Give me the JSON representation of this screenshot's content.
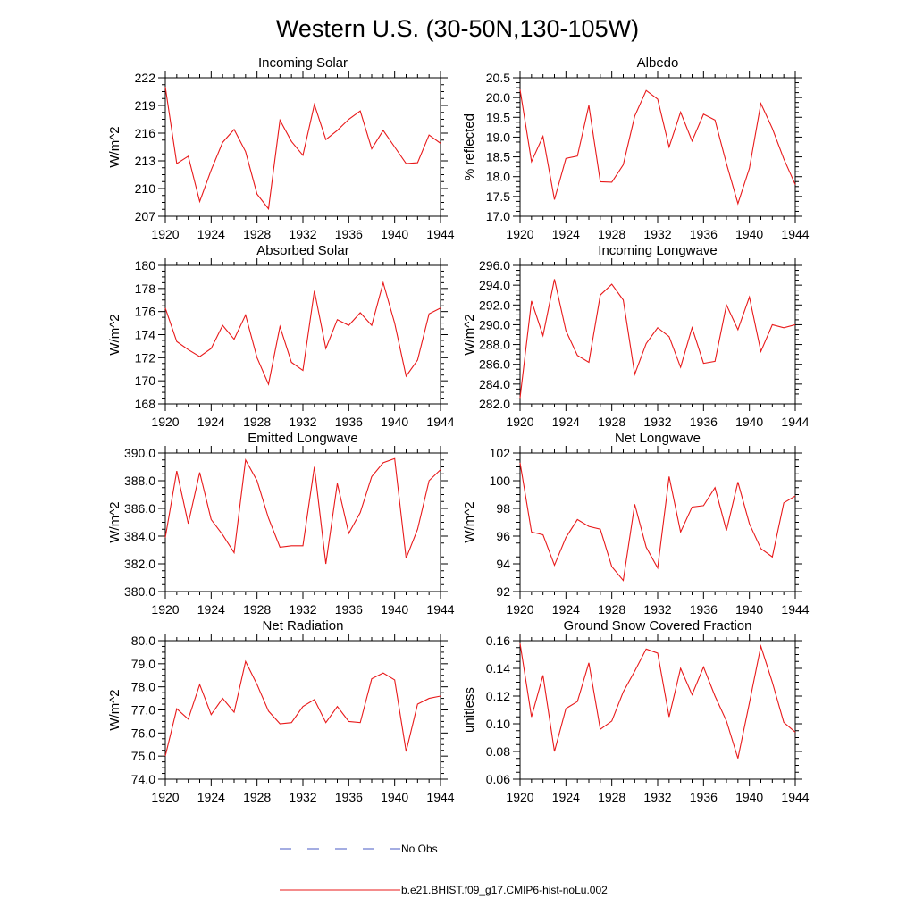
{
  "figure": {
    "title": "Western U.S. (30-50N,130-105W)"
  },
  "legend": {
    "items": [
      {
        "label": "No Obs",
        "style": "dashed",
        "color": "#4a5bc4"
      },
      {
        "label": "b.e21.BHIST.f09_g17.CMIP6-hist-noLu.002",
        "style": "solid",
        "color": "#e8191a"
      }
    ]
  },
  "chart_data": [
    {
      "type": "line",
      "title": "Incoming Solar",
      "ylabel": "W/m^2",
      "xlim": [
        1920,
        1944
      ],
      "xticks": [
        "1920",
        "1924",
        "1928",
        "1932",
        "1936",
        "1940",
        "1944"
      ],
      "ylim": [
        207,
        222
      ],
      "yticks": [
        "207",
        "210",
        "213",
        "216",
        "219",
        "222"
      ],
      "series": [
        {
          "color": "#e8191a",
          "x": [
            1920,
            1921,
            1922,
            1923,
            1924,
            1925,
            1926,
            1927,
            1928,
            1929,
            1930,
            1931,
            1932,
            1933,
            1934,
            1935,
            1936,
            1937,
            1938,
            1939,
            1940,
            1941,
            1942,
            1943,
            1944
          ],
          "values": [
            221.0,
            212.7,
            213.5,
            208.6,
            212.0,
            215.0,
            216.4,
            214.0,
            209.4,
            207.8,
            217.4,
            215.1,
            213.6,
            219.1,
            215.3,
            216.3,
            217.5,
            218.4,
            214.3,
            216.3,
            214.5,
            212.7,
            212.8,
            215.8,
            214.9
          ]
        }
      ]
    },
    {
      "type": "line",
      "title": "Albedo",
      "ylabel": "% reflected",
      "xlim": [
        1920,
        1944
      ],
      "xticks": [
        "1920",
        "1924",
        "1928",
        "1932",
        "1936",
        "1940",
        "1944"
      ],
      "ylim": [
        17.0,
        20.5
      ],
      "yticks": [
        "17.0",
        "17.5",
        "18.0",
        "18.5",
        "19.0",
        "19.5",
        "20.0",
        "20.5"
      ],
      "series": [
        {
          "color": "#e8191a",
          "x": [
            1920,
            1921,
            1922,
            1923,
            1924,
            1925,
            1926,
            1927,
            1928,
            1929,
            1930,
            1931,
            1932,
            1933,
            1934,
            1935,
            1936,
            1937,
            1938,
            1939,
            1940,
            1941,
            1942,
            1943,
            1944
          ],
          "values": [
            20.2,
            18.38,
            19.02,
            17.42,
            18.46,
            18.52,
            19.8,
            17.87,
            17.86,
            18.3,
            19.53,
            20.18,
            19.96,
            18.75,
            19.63,
            18.9,
            19.58,
            19.43,
            18.33,
            17.32,
            18.21,
            19.85,
            19.22,
            18.45,
            17.8
          ]
        }
      ]
    },
    {
      "type": "line",
      "title": "Absorbed Solar",
      "ylabel": "W/m^2",
      "xlim": [
        1920,
        1944
      ],
      "xticks": [
        "1920",
        "1924",
        "1928",
        "1932",
        "1936",
        "1940",
        "1944"
      ],
      "ylim": [
        168,
        180
      ],
      "yticks": [
        "168",
        "170",
        "172",
        "174",
        "176",
        "178",
        "180"
      ],
      "series": [
        {
          "color": "#e8191a",
          "x": [
            1920,
            1921,
            1922,
            1923,
            1924,
            1925,
            1926,
            1927,
            1928,
            1929,
            1930,
            1931,
            1932,
            1933,
            1934,
            1935,
            1936,
            1937,
            1938,
            1939,
            1940,
            1941,
            1942,
            1943,
            1944
          ],
          "values": [
            176.3,
            173.4,
            172.7,
            172.1,
            172.8,
            174.8,
            173.6,
            175.7,
            172.0,
            169.7,
            174.7,
            171.6,
            170.9,
            177.8,
            172.8,
            175.3,
            174.8,
            175.9,
            174.8,
            178.5,
            175.0,
            170.4,
            171.8,
            175.8,
            176.3
          ]
        }
      ]
    },
    {
      "type": "line",
      "title": "Incoming Longwave",
      "ylabel": "W/m^2",
      "xlim": [
        1920,
        1944
      ],
      "xticks": [
        "1920",
        "1924",
        "1928",
        "1932",
        "1936",
        "1940",
        "1944"
      ],
      "ylim": [
        282.0,
        296.0
      ],
      "yticks": [
        "282.0",
        "284.0",
        "286.0",
        "288.0",
        "290.0",
        "292.0",
        "294.0",
        "296.0"
      ],
      "series": [
        {
          "color": "#e8191a",
          "x": [
            1920,
            1921,
            1922,
            1923,
            1924,
            1925,
            1926,
            1927,
            1928,
            1929,
            1930,
            1931,
            1932,
            1933,
            1934,
            1935,
            1936,
            1937,
            1938,
            1939,
            1940,
            1941,
            1942,
            1943,
            1944
          ],
          "values": [
            282.6,
            292.4,
            288.9,
            294.6,
            289.4,
            286.9,
            286.2,
            293.0,
            294.1,
            292.5,
            285.0,
            288.1,
            289.7,
            288.8,
            285.7,
            289.7,
            286.1,
            286.3,
            292.0,
            289.5,
            292.8,
            287.3,
            290.0,
            289.7,
            290.0
          ]
        }
      ]
    },
    {
      "type": "line",
      "title": "Emitted Longwave",
      "ylabel": "W/m^2",
      "xlim": [
        1920,
        1944
      ],
      "xticks": [
        "1920",
        "1924",
        "1928",
        "1932",
        "1936",
        "1940",
        "1944"
      ],
      "ylim": [
        380.0,
        390.0
      ],
      "yticks": [
        "380.0",
        "382.0",
        "384.0",
        "386.0",
        "388.0",
        "390.0"
      ],
      "series": [
        {
          "color": "#e8191a",
          "x": [
            1920,
            1921,
            1922,
            1923,
            1924,
            1925,
            1926,
            1927,
            1928,
            1929,
            1930,
            1931,
            1932,
            1933,
            1934,
            1935,
            1936,
            1937,
            1938,
            1939,
            1940,
            1941,
            1942,
            1943,
            1944
          ],
          "values": [
            383.9,
            388.7,
            384.9,
            388.6,
            385.2,
            384.1,
            382.8,
            389.5,
            388.0,
            385.3,
            383.2,
            383.3,
            383.3,
            389.0,
            382.0,
            387.8,
            384.2,
            385.7,
            388.3,
            389.3,
            389.6,
            382.4,
            384.5,
            388.0,
            388.8
          ]
        }
      ]
    },
    {
      "type": "line",
      "title": "Net Longwave",
      "ylabel": "W/m^2",
      "xlim": [
        1920,
        1944
      ],
      "xticks": [
        "1920",
        "1924",
        "1928",
        "1932",
        "1936",
        "1940",
        "1944"
      ],
      "ylim": [
        92,
        102
      ],
      "yticks": [
        "92",
        "94",
        "96",
        "98",
        "100",
        "102"
      ],
      "series": [
        {
          "color": "#e8191a",
          "x": [
            1920,
            1921,
            1922,
            1923,
            1924,
            1925,
            1926,
            1927,
            1928,
            1929,
            1930,
            1931,
            1932,
            1933,
            1934,
            1935,
            1936,
            1937,
            1938,
            1939,
            1940,
            1941,
            1942,
            1943,
            1944
          ],
          "values": [
            101.3,
            96.3,
            96.1,
            93.9,
            95.9,
            97.2,
            96.7,
            96.5,
            93.8,
            92.8,
            98.3,
            95.2,
            93.7,
            100.3,
            96.3,
            98.1,
            98.2,
            99.5,
            96.4,
            99.9,
            96.9,
            95.1,
            94.5,
            98.4,
            98.9
          ]
        }
      ]
    },
    {
      "type": "line",
      "title": "Net Radiation",
      "ylabel": "W/m^2",
      "xlim": [
        1920,
        1944
      ],
      "xticks": [
        "1920",
        "1924",
        "1928",
        "1932",
        "1936",
        "1940",
        "1944"
      ],
      "ylim": [
        74.0,
        80.0
      ],
      "yticks": [
        "74.0",
        "75.0",
        "76.0",
        "77.0",
        "78.0",
        "79.0",
        "80.0"
      ],
      "series": [
        {
          "color": "#e8191a",
          "x": [
            1920,
            1921,
            1922,
            1923,
            1924,
            1925,
            1926,
            1927,
            1928,
            1929,
            1930,
            1931,
            1932,
            1933,
            1934,
            1935,
            1936,
            1937,
            1938,
            1939,
            1940,
            1941,
            1942,
            1943,
            1944
          ],
          "values": [
            75.0,
            77.05,
            76.6,
            78.1,
            76.8,
            77.5,
            76.9,
            79.1,
            78.1,
            76.95,
            76.4,
            76.45,
            77.15,
            77.45,
            76.45,
            77.15,
            76.5,
            76.45,
            78.35,
            78.6,
            78.3,
            75.2,
            77.25,
            77.5,
            77.6
          ]
        }
      ]
    },
    {
      "type": "line",
      "title": "Ground Snow Covered Fraction",
      "ylabel": "unitless",
      "xlim": [
        1920,
        1944
      ],
      "xticks": [
        "1920",
        "1924",
        "1928",
        "1932",
        "1936",
        "1940",
        "1944"
      ],
      "ylim": [
        0.06,
        0.16
      ],
      "yticks": [
        "0.06",
        "0.08",
        "0.10",
        "0.12",
        "0.14",
        "0.16"
      ],
      "series": [
        {
          "color": "#e8191a",
          "x": [
            1920,
            1921,
            1922,
            1923,
            1924,
            1925,
            1926,
            1927,
            1928,
            1929,
            1930,
            1931,
            1932,
            1933,
            1934,
            1935,
            1936,
            1937,
            1938,
            1939,
            1940,
            1941,
            1942,
            1943,
            1944
          ],
          "values": [
            0.158,
            0.105,
            0.135,
            0.08,
            0.111,
            0.116,
            0.144,
            0.096,
            0.102,
            0.123,
            0.138,
            0.154,
            0.151,
            0.105,
            0.14,
            0.121,
            0.141,
            0.12,
            0.102,
            0.075,
            0.115,
            0.156,
            0.13,
            0.101,
            0.094
          ]
        }
      ]
    }
  ]
}
